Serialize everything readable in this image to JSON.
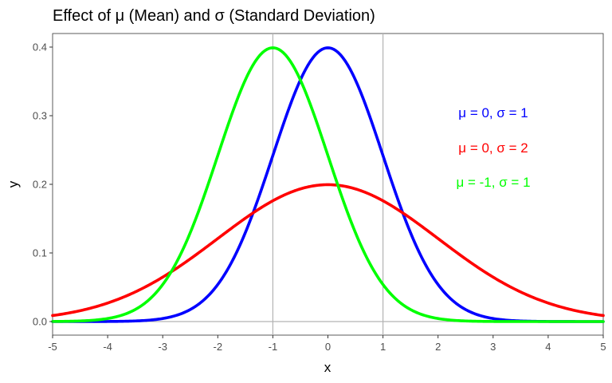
{
  "chart_data": {
    "type": "line",
    "title": "Effect of μ (Mean) and σ (Standard Deviation)",
    "xlabel": "x",
    "ylabel": "y",
    "xlim": [
      -5,
      5
    ],
    "ylim": [
      0,
      0.4
    ],
    "x_ticks": [
      -5,
      -4,
      -3,
      -2,
      -1,
      0,
      1,
      2,
      3,
      4,
      5
    ],
    "y_ticks": [
      0.0,
      0.1,
      0.2,
      0.3,
      0.4
    ],
    "y_tick_labels": [
      "0.0",
      "0.1",
      "0.2",
      "0.3",
      "0.4"
    ],
    "reference_lines": {
      "vertical_x": [
        -1,
        1
      ],
      "horizontal_y": [
        0
      ],
      "color": "#b3b3b3"
    },
    "grid": false,
    "series": [
      {
        "mean": 0,
        "sd": 1,
        "color": "#0000ff",
        "label": "μ = 0, σ = 1"
      },
      {
        "mean": 0,
        "sd": 2,
        "color": "#ff0000",
        "label": "μ = 0, σ = 2"
      },
      {
        "mean": -1,
        "sd": 1,
        "color": "#00ff00",
        "label": "μ = -1, σ = 1"
      }
    ]
  }
}
